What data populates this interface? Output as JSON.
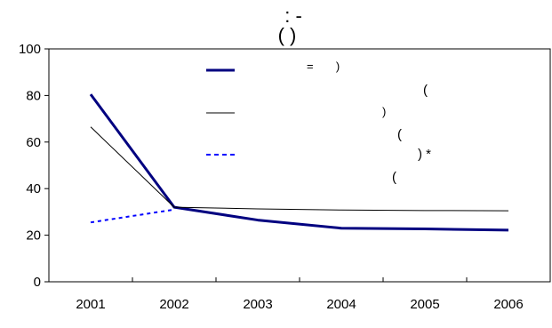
{
  "chart_data": {
    "type": "line",
    "title_lines": [
      ":      -",
      "(        )"
    ],
    "xlabel": "",
    "ylabel": "",
    "categories": [
      "2001",
      "2002",
      "2003",
      "2004",
      "2005",
      "2006"
    ],
    "ylim": [
      0,
      100
    ],
    "yticks": [
      "0",
      "20",
      "40",
      "60",
      "80",
      "100"
    ],
    "grid": false,
    "legend_position": "top-left inside plot",
    "series": [
      {
        "legend_label": "=       )",
        "style": "thick-solid",
        "color": "#000080",
        "values": [
          80.5,
          32,
          26.5,
          23,
          22.7,
          22.2
        ]
      },
      {
        "legend_label": ")",
        "style": "thin-solid",
        "color": "#000000",
        "values": [
          66.5,
          32,
          31.3,
          30.8,
          30.6,
          30.5
        ]
      },
      {
        "legend_label": "",
        "style": "dotted",
        "color": "#0000ff",
        "values": [
          25.5,
          31,
          null,
          null,
          null,
          null
        ]
      }
    ],
    "annotations": [
      "(",
      "(",
      ") *",
      "("
    ]
  }
}
